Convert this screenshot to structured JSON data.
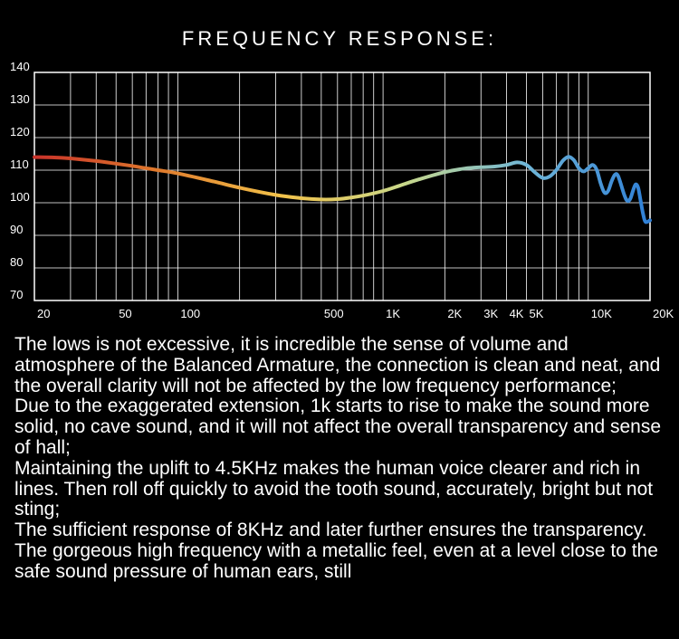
{
  "chart_data": {
    "type": "line",
    "title": "FREQUENCY RESPONSE:",
    "xlabel": "",
    "ylabel": "",
    "x_scale": "log",
    "xlim": [
      20,
      20000
    ],
    "ylim": [
      70,
      140
    ],
    "grid": true,
    "x_ticks": [
      {
        "value": 20,
        "label": "20"
      },
      {
        "value": 50,
        "label": "50"
      },
      {
        "value": 100,
        "label": "100"
      },
      {
        "value": 500,
        "label": "500"
      },
      {
        "value": 1000,
        "label": "1K"
      },
      {
        "value": 2000,
        "label": "2K"
      },
      {
        "value": 3000,
        "label": "3K"
      },
      {
        "value": 4000,
        "label": "4K"
      },
      {
        "value": 5000,
        "label": "5K"
      },
      {
        "value": 10000,
        "label": "10K"
      },
      {
        "value": 20000,
        "label": "20K"
      }
    ],
    "y_ticks": [
      {
        "value": 140,
        "label": "140"
      },
      {
        "value": 130,
        "label": "130"
      },
      {
        "value": 120,
        "label": "120"
      },
      {
        "value": 110,
        "label": "110"
      },
      {
        "value": 100,
        "label": "100"
      },
      {
        "value": 90,
        "label": "90"
      },
      {
        "value": 80,
        "label": "80"
      },
      {
        "value": 70,
        "label": "70"
      }
    ],
    "series": [
      {
        "gradient": [
          "#c8322a",
          "#e07a2c",
          "#f2c24a",
          "#c9d88a",
          "#6fb6d8",
          "#2f7fd6"
        ],
        "points": [
          [
            20,
            114
          ],
          [
            25,
            113.9
          ],
          [
            30,
            113.6
          ],
          [
            40,
            112.8
          ],
          [
            50,
            112
          ],
          [
            60,
            111.3
          ],
          [
            70,
            110.6
          ],
          [
            80,
            110
          ],
          [
            100,
            109
          ],
          [
            150,
            106.5
          ],
          [
            200,
            104.6
          ],
          [
            300,
            102.4
          ],
          [
            400,
            101.4
          ],
          [
            500,
            101
          ],
          [
            600,
            101.1
          ],
          [
            700,
            101.6
          ],
          [
            800,
            102.2
          ],
          [
            1000,
            103.6
          ],
          [
            1200,
            105.2
          ],
          [
            1500,
            107.2
          ],
          [
            2000,
            109.4
          ],
          [
            2500,
            110.5
          ],
          [
            3000,
            110.9
          ],
          [
            3500,
            111.1
          ],
          [
            4000,
            111.6
          ],
          [
            4500,
            112.4
          ],
          [
            5000,
            111.6
          ],
          [
            5500,
            109.3
          ],
          [
            6000,
            107.6
          ],
          [
            6500,
            108.1
          ],
          [
            7000,
            110.1
          ],
          [
            7500,
            112.8
          ],
          [
            8000,
            114.1
          ],
          [
            8500,
            113.1
          ],
          [
            9000,
            110.6
          ],
          [
            9500,
            109.6
          ],
          [
            10000,
            110.6
          ],
          [
            10500,
            111.6
          ],
          [
            11000,
            110.1
          ],
          [
            11500,
            105.9
          ],
          [
            12000,
            103.1
          ],
          [
            12500,
            103.6
          ],
          [
            13000,
            106.6
          ],
          [
            13500,
            108.6
          ],
          [
            14000,
            108.1
          ],
          [
            15000,
            102.3
          ],
          [
            15500,
            100.6
          ],
          [
            16000,
            101.1
          ],
          [
            16500,
            103.6
          ],
          [
            17000,
            105.6
          ],
          [
            17500,
            104.6
          ],
          [
            18000,
            100.6
          ],
          [
            18500,
            96.6
          ],
          [
            19000,
            94.1
          ],
          [
            20000,
            94.6
          ]
        ]
      }
    ]
  },
  "description": [
    "The lows is not excessive, it is incredible the sense of volume and atmosphere of the Balanced Armature, the connection is clean and neat, and the overall clarity will not be affected by the low frequency performance;",
    "Due to the exaggerated extension, 1k starts to rise to make the sound more solid, no cave sound, and it will not affect the overall transparency and sense of hall;",
    "Maintaining the uplift to 4.5KHz makes the human voice clearer and rich in lines. Then roll off quickly to avoid the tooth sound, accurately, bright but not sting;",
    "The sufficient response of 8KHz and later further ensures the transparency. The gorgeous high frequency with a metallic feel, even at a level close to the safe sound pressure of human ears, still"
  ]
}
